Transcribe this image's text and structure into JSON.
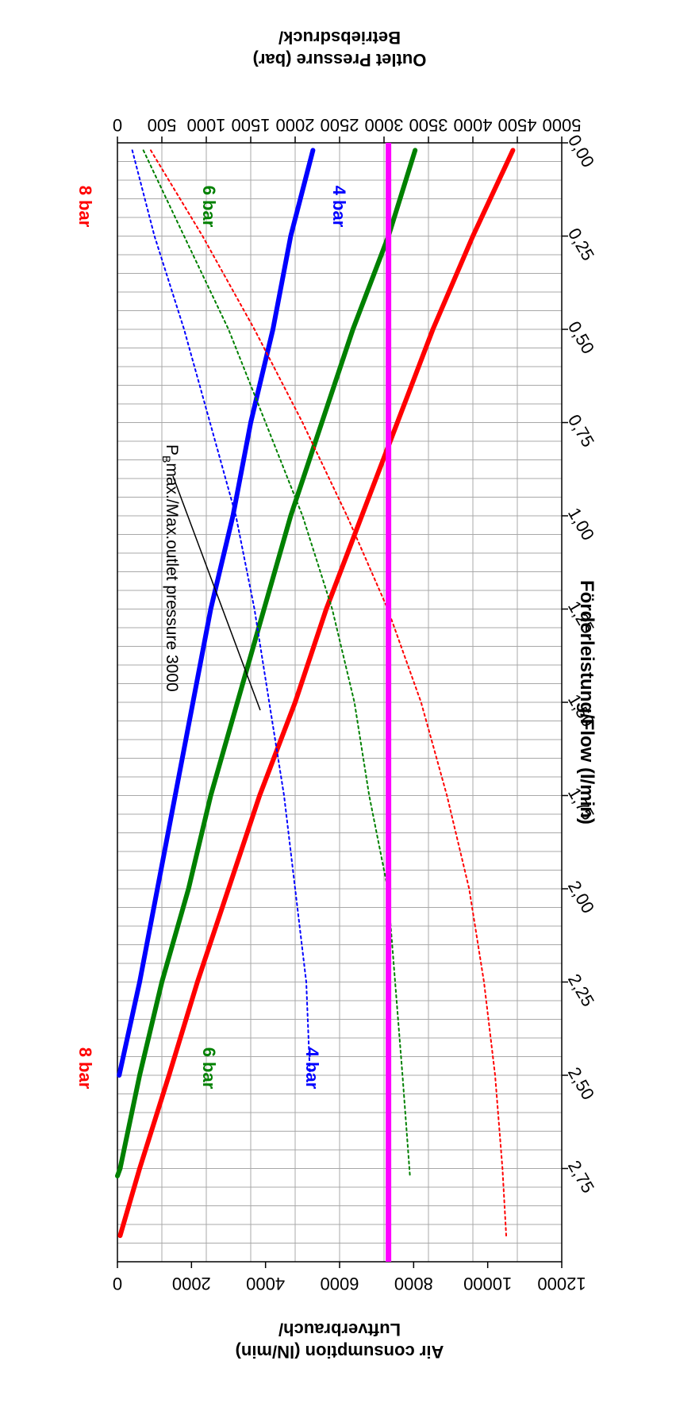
{
  "chart_data": {
    "type": "line",
    "orientation": "rotated-90-clockwise",
    "xlabel": "Förderleistung/Flow (l/min)",
    "ylabel_left_line1": "Betriebsdruck/",
    "ylabel_left_line2": "Outlet Pressure (bar)",
    "ylabel_right_line1": "Luftverbrauch/",
    "ylabel_right_line2": "Air consumption (lN/min)",
    "xlim": [
      0,
      3.0
    ],
    "ylim_left": [
      0,
      5000
    ],
    "ylim_right": [
      0,
      12000
    ],
    "x_ticks": [
      "0,00",
      "0,25",
      "0,50",
      "0,75",
      "1,00",
      "1,25",
      "1,50",
      "1,75",
      "2,00",
      "2,25",
      "2,50",
      "2,75"
    ],
    "x_tick_values": [
      0,
      0.25,
      0.5,
      0.75,
      1.0,
      1.25,
      1.5,
      1.75,
      2.0,
      2.25,
      2.5,
      2.75
    ],
    "y_left_ticks": [
      "0",
      "500",
      "1000",
      "1500",
      "2000",
      "2500",
      "3000",
      "3500",
      "4000",
      "4500",
      "5000"
    ],
    "y_left_tick_values": [
      0,
      500,
      1000,
      1500,
      2000,
      2500,
      3000,
      3500,
      4000,
      4500,
      5000
    ],
    "y_right_ticks": [
      "0",
      "2000",
      "4000",
      "6000",
      "8000",
      "10000",
      "12000"
    ],
    "y_right_tick_values": [
      0,
      2000,
      4000,
      6000,
      8000,
      10000,
      12000
    ],
    "grid": true,
    "series": [
      {
        "name": "8 bar",
        "axis": "left",
        "style": "solid",
        "color": "#ff0000",
        "x": [
          0.02,
          0.25,
          0.5,
          0.75,
          1.0,
          1.25,
          1.5,
          1.75,
          2.0,
          2.25,
          2.5,
          2.75,
          2.93
        ],
        "values": [
          4450,
          4000,
          3550,
          3150,
          2750,
          2350,
          2000,
          1600,
          1250,
          900,
          580,
          250,
          30
        ]
      },
      {
        "name": "6 bar",
        "axis": "left",
        "style": "solid",
        "color": "#008000",
        "x": [
          0.02,
          0.25,
          0.5,
          0.75,
          1.0,
          1.25,
          1.5,
          1.75,
          2.0,
          2.25,
          2.5,
          2.75,
          2.77
        ],
        "values": [
          3350,
          3050,
          2650,
          2300,
          1950,
          1650,
          1350,
          1050,
          800,
          500,
          250,
          30,
          0
        ]
      },
      {
        "name": "4 bar",
        "axis": "left",
        "style": "solid",
        "color": "#0000ff",
        "x": [
          0.02,
          0.25,
          0.5,
          0.75,
          1.0,
          1.25,
          1.5,
          1.75,
          2.0,
          2.25,
          2.5
        ],
        "values": [
          2200,
          1950,
          1750,
          1500,
          1300,
          1050,
          850,
          650,
          450,
          250,
          20
        ]
      },
      {
        "name": "8 bar",
        "axis": "right",
        "style": "dashed",
        "color": "#ff0000",
        "x": [
          0.02,
          0.25,
          0.5,
          0.75,
          1.0,
          1.25,
          1.5,
          1.75,
          2.0,
          2.25,
          2.5,
          2.75,
          2.93
        ],
        "values": [
          900,
          2300,
          3700,
          5000,
          6200,
          7300,
          8200,
          8900,
          9500,
          9900,
          10200,
          10400,
          10500
        ]
      },
      {
        "name": "6 bar",
        "axis": "right",
        "style": "dashed",
        "color": "#008000",
        "x": [
          0.02,
          0.25,
          0.5,
          0.75,
          1.0,
          1.25,
          1.5,
          1.75,
          2.0,
          2.25,
          2.5,
          2.77
        ],
        "values": [
          700,
          1800,
          3000,
          4000,
          5000,
          5800,
          6400,
          6800,
          7300,
          7500,
          7700,
          7900
        ]
      },
      {
        "name": "4 bar",
        "axis": "right",
        "style": "dashed",
        "color": "#0000ff",
        "x": [
          0.02,
          0.25,
          0.5,
          0.75,
          1.0,
          1.25,
          1.5,
          1.75,
          2.0,
          2.25,
          2.5
        ],
        "values": [
          400,
          1000,
          1800,
          2500,
          3200,
          3700,
          4100,
          4500,
          4800,
          5100,
          5200
        ]
      }
    ],
    "reference_line": {
      "axis": "left",
      "value": 3050,
      "color": "#ff00ff"
    },
    "annotation": {
      "text_sub": "B",
      "text_prefix": "P",
      "text_rest": "max./Max.outlet pressure 3000"
    },
    "labels": {
      "solid_8": "8 bar",
      "solid_6": "6 bar",
      "solid_4": "4 bar",
      "dash_8": "8 bar",
      "dash_6": "6 bar",
      "dash_4": "4 bar"
    }
  }
}
